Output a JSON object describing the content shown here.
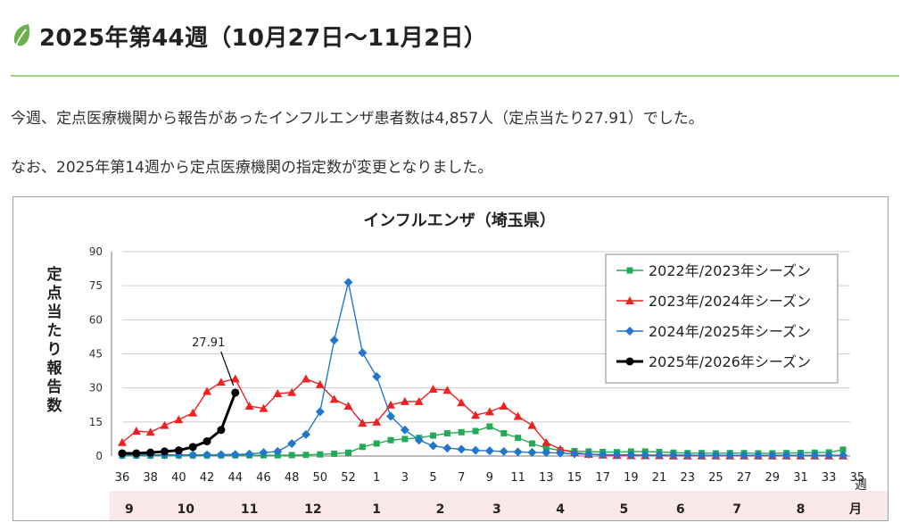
{
  "page": {
    "title": "2025年第44週（10月27日〜11月2日）",
    "intro": "今週、定点医療機関から報告があったインフルエンザ患者数は4,857人（定点当たり27.91）でした。",
    "note": "なお、2025年第14週から定点医療機関の指定数が変更となりました。"
  },
  "colors": {
    "accent": "#9fd27a",
    "leaf": "#6ab04c",
    "month_band": "#fbe9e9"
  },
  "chart_data": {
    "type": "line",
    "title": "インフルエンザ（埼玉県）",
    "ylabel": "定点当たり報告数",
    "xlabel_unit": "週",
    "month_unit": "月",
    "ylim": [
      0,
      90
    ],
    "yticks": [
      "0",
      "15",
      "30",
      "45",
      "60",
      "75",
      "90"
    ],
    "weeks": [
      36,
      37,
      38,
      39,
      40,
      41,
      42,
      43,
      44,
      45,
      46,
      47,
      48,
      49,
      50,
      51,
      52,
      1,
      2,
      3,
      4,
      5,
      6,
      7,
      8,
      9,
      10,
      11,
      12,
      13,
      14,
      15,
      16,
      17,
      18,
      19,
      20,
      21,
      22,
      23,
      24,
      25,
      26,
      27,
      28,
      29,
      30,
      31,
      32,
      33,
      34,
      35
    ],
    "xtick_labels": [
      "36",
      "38",
      "40",
      "42",
      "44",
      "46",
      "48",
      "50",
      "52",
      "1",
      "3",
      "5",
      "7",
      "9",
      "11",
      "13",
      "15",
      "17",
      "19",
      "21",
      "23",
      "25",
      "27",
      "29",
      "31",
      "33",
      "35"
    ],
    "months": [
      {
        "label": "9",
        "week_index": 0.5
      },
      {
        "label": "10",
        "week_index": 4.5
      },
      {
        "label": "11",
        "week_index": 9
      },
      {
        "label": "12",
        "week_index": 13.5
      },
      {
        "label": "1",
        "week_index": 18
      },
      {
        "label": "2",
        "week_index": 22.5
      },
      {
        "label": "3",
        "week_index": 26.5
      },
      {
        "label": "4",
        "week_index": 31
      },
      {
        "label": "5",
        "week_index": 35.5
      },
      {
        "label": "6",
        "week_index": 39.5
      },
      {
        "label": "7",
        "week_index": 43.5
      },
      {
        "label": "8",
        "week_index": 48
      }
    ],
    "series": [
      {
        "name": "2022年/2023年シーズン",
        "color": "#22aa55",
        "marker": "square",
        "values": [
          0.2,
          0.2,
          0.2,
          0.2,
          0.3,
          0.3,
          0.3,
          0.3,
          0.3,
          0.3,
          0.3,
          0.3,
          0.4,
          0.5,
          0.7,
          1.0,
          1.5,
          4.0,
          5.5,
          7.0,
          7.5,
          8.0,
          9.0,
          10.0,
          10.5,
          11.0,
          13.0,
          10.0,
          8.0,
          5.5,
          3.5,
          2.5,
          2.2,
          2.0,
          1.8,
          1.7,
          2.0,
          2.0,
          1.8,
          1.5,
          1.3,
          1.3,
          1.2,
          1.3,
          1.3,
          1.2,
          1.2,
          1.3,
          1.4,
          1.5,
          1.6,
          2.8
        ]
      },
      {
        "name": "2023年/2024年シーズン",
        "color": "#ee2222",
        "marker": "triangle",
        "values": [
          6.0,
          11.0,
          10.5,
          13.5,
          16.0,
          19.0,
          28.5,
          32.5,
          34.0,
          22.0,
          21.0,
          27.5,
          28.0,
          34.0,
          31.5,
          25.0,
          22.0,
          14.5,
          15.0,
          22.5,
          24.0,
          24.0,
          29.5,
          29.0,
          23.5,
          18.0,
          19.5,
          22.0,
          17.5,
          13.5,
          6.0,
          3.0,
          1.5,
          0.8,
          0.5,
          0.3,
          0.2,
          0.2,
          0.2,
          0.1,
          0.1,
          0.1,
          0.1,
          0.1,
          0.1,
          0.1,
          0.1,
          0.1,
          0.1,
          0.1,
          0.1,
          0.1
        ]
      },
      {
        "name": "2024年/2025年シーズン",
        "color": "#2277cc",
        "marker": "diamond",
        "values": [
          0.5,
          0.5,
          0.5,
          0.5,
          0.5,
          0.5,
          0.5,
          0.6,
          0.7,
          0.9,
          1.5,
          2.0,
          5.5,
          9.5,
          19.5,
          51.0,
          76.5,
          45.5,
          35.0,
          17.5,
          11.5,
          7.0,
          4.5,
          3.5,
          3.0,
          2.5,
          2.3,
          2.0,
          1.8,
          1.6,
          1.5,
          1.3,
          1.0,
          0.8,
          0.6,
          0.5,
          0.5,
          0.4,
          0.4,
          0.4,
          0.4,
          0.3,
          0.3,
          0.3,
          0.3,
          0.3,
          0.3,
          0.3,
          0.3,
          0.3,
          0.3,
          0.3
        ]
      },
      {
        "name": "2025年/2026年シーズン",
        "color": "#000000",
        "marker": "circle",
        "values": [
          1.2,
          1.2,
          1.5,
          2.0,
          2.5,
          4.0,
          6.5,
          11.5,
          27.91
        ]
      }
    ],
    "annotation": {
      "label": "27.91",
      "series": "2025年/2026年シーズン",
      "week_index": 8
    },
    "legend": "top-right",
    "grid": true
  }
}
